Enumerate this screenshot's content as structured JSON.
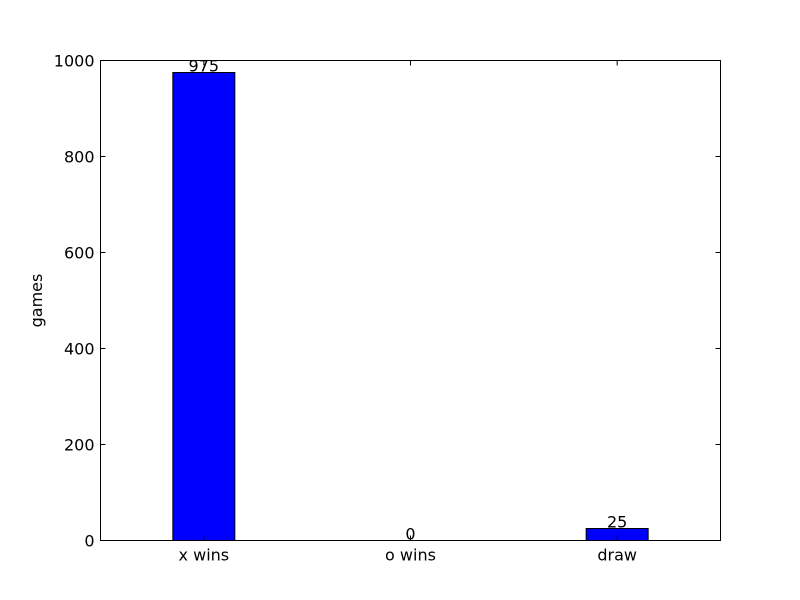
{
  "chart_data": {
    "type": "bar",
    "categories": [
      "x wins",
      "o wins",
      "draw"
    ],
    "values": [
      975,
      0,
      25
    ],
    "data_labels": [
      "975",
      "0",
      "25"
    ],
    "title": "",
    "xlabel": "",
    "ylabel": "games",
    "ylim": [
      0,
      1000
    ],
    "yticks": [
      0,
      200,
      400,
      600,
      800,
      1000
    ],
    "ytick_labels": [
      "0",
      "200",
      "400",
      "600",
      "800",
      "1000"
    ],
    "grid": false,
    "legend": "none",
    "colors": {
      "bar_fill": "#0000ff",
      "bar_edge": "#000000",
      "axis": "#000000",
      "background": "#ffffff"
    }
  }
}
